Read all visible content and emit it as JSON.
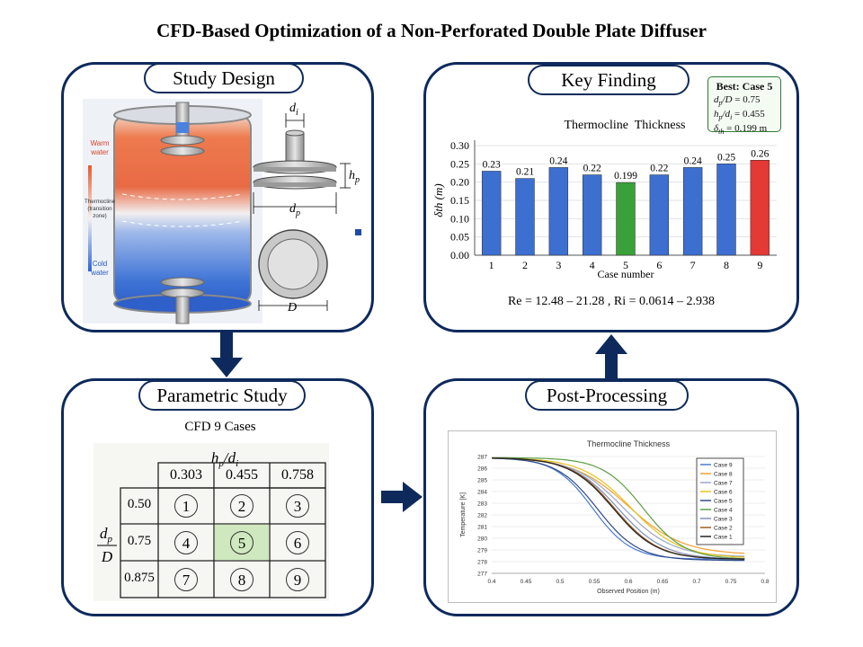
{
  "title": "CFD-Based Optimization of a Non-Perforated Double Plate Diffuser",
  "panels": {
    "study_design": {
      "label": "Study Design",
      "tank_labels": {
        "warm": "Warm\nwater",
        "thermocline": "Thermocline\n(transition\nzone)",
        "cold": "Cold\nwater"
      },
      "dims": {
        "di": "d",
        "di_sub": "i",
        "hp": "h",
        "hp_sub": "p",
        "dp": "d",
        "dp_sub": "p",
        "D": "D"
      }
    },
    "key_finding": {
      "label": "Key Finding",
      "best": {
        "heading": "Best: Case 5",
        "line1": "dp/D = 0.75",
        "line2": "hp/di = 0.455",
        "line3": "δth = 0.199 m"
      },
      "chart_title": "Thermocline  Thickness",
      "footer": "Re = 12.48 – 21.28 , Ri = 0.0614 – 2.938"
    },
    "parametric": {
      "label": "Parametric Study",
      "subtitle": "CFD 9 Cases",
      "col_header": "hp/di",
      "row_header": "dp/D",
      "cols": [
        "0.303",
        "0.455",
        "0.758"
      ],
      "rows": [
        "0.50",
        "0.75",
        "0.875"
      ],
      "cases": [
        [
          "1",
          "2",
          "3"
        ],
        [
          "4",
          "5",
          "6"
        ],
        [
          "7",
          "8",
          "9"
        ]
      ]
    },
    "post": {
      "label": "Post-Processing"
    }
  },
  "chart_data": [
    {
      "type": "bar",
      "title": "Thermocline  Thickness",
      "xlabel": "Case number",
      "ylabel": "δth (m)",
      "categories": [
        "1",
        "2",
        "3",
        "4",
        "5",
        "6",
        "7",
        "8",
        "9"
      ],
      "values": [
        0.23,
        0.21,
        0.24,
        0.22,
        0.199,
        0.22,
        0.24,
        0.25,
        0.26
      ],
      "value_labels": [
        "0.23",
        "0.21",
        "0.24",
        "0.22",
        "0.199",
        "0.22",
        "0.24",
        "0.25",
        "0.26"
      ],
      "ylim": [
        0,
        0.3
      ],
      "yticks": [
        "0.00",
        "0.05",
        "0.10",
        "0.15",
        "0.20",
        "0.25",
        "0.30"
      ],
      "colors": {
        "default": "#3d6fd0",
        "best": "#3aa13a",
        "worst": "#e53935"
      }
    },
    {
      "type": "line",
      "title": "Thermocline Thickness",
      "xlabel": "Observed Position (m)",
      "ylabel": "Temperature [K]",
      "xlim": [
        0.4,
        0.8
      ],
      "ylim": [
        277,
        287
      ],
      "xticks": [
        "0.4",
        "0.45",
        "0.5",
        "0.55",
        "0.6",
        "0.65",
        "0.7",
        "0.75",
        "0.8"
      ],
      "yticks": [
        "277",
        "278",
        "279",
        "280",
        "281",
        "282",
        "283",
        "284",
        "285",
        "286",
        "287"
      ],
      "legend": "top-right",
      "series": [
        {
          "name": "Case 9",
          "color": "#4a7bd1",
          "mid": 0.548,
          "w": 0.028,
          "low": 278.2
        },
        {
          "name": "Case 8",
          "color": "#f0a030",
          "mid": 0.6,
          "w": 0.04,
          "low": 278.6
        },
        {
          "name": "Case 7",
          "color": "#9aa7c8",
          "mid": 0.592,
          "w": 0.036,
          "low": 278.4
        },
        {
          "name": "Case 6",
          "color": "#e6c21c",
          "mid": 0.604,
          "w": 0.036,
          "low": 278.3
        },
        {
          "name": "Case 5",
          "color": "#2f4a8a",
          "mid": 0.555,
          "w": 0.03,
          "low": 278.1
        },
        {
          "name": "Case 4",
          "color": "#5aa043",
          "mid": 0.622,
          "w": 0.03,
          "low": 278.2
        },
        {
          "name": "Case 3",
          "color": "#7f8fb5",
          "mid": 0.585,
          "w": 0.034,
          "low": 278.2
        },
        {
          "name": "Case 2",
          "color": "#9c5a1e",
          "mid": 0.58,
          "w": 0.032,
          "low": 278.2
        },
        {
          "name": "Case 1",
          "color": "#222222",
          "mid": 0.578,
          "w": 0.032,
          "low": 278.2
        }
      ]
    }
  ]
}
